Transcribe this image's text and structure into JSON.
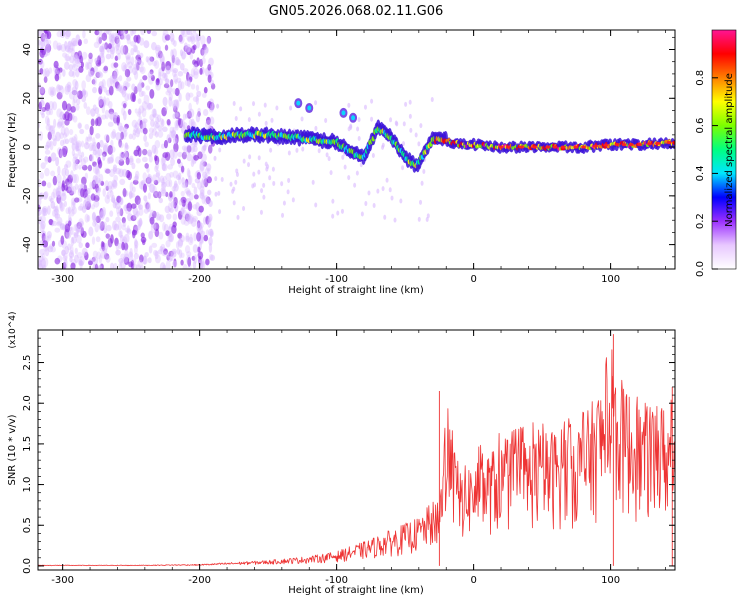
{
  "title": "GN05.2026.068.02.11.G06",
  "chart_data": [
    {
      "type": "heatmap",
      "name": "spectrogram",
      "xlabel": "Height of straight line (km)",
      "ylabel": "Frequency (Hz)",
      "xlim": [
        -318,
        147
      ],
      "ylim": [
        -50,
        48
      ],
      "xticks": [
        -300,
        -200,
        -100,
        0,
        100
      ],
      "xtick_labels": [
        "-300",
        "-200",
        "-100",
        "0",
        "100"
      ],
      "yticks": [
        -40,
        -20,
        0,
        20,
        40
      ],
      "ytick_labels": [
        "-40",
        "-20",
        "0",
        "20",
        "40"
      ],
      "colorbar": {
        "label": "Normalized spectral amplitude",
        "range": [
          0,
          1
        ],
        "ticks": [
          0.0,
          0.2,
          0.4,
          0.6,
          0.8
        ],
        "tick_labels": [
          "0.0",
          "0.2",
          "0.4",
          "0.6",
          "0.8"
        ],
        "colors": [
          "#ffffff",
          "#e8c8ff",
          "#9b30ff",
          "#0000ff",
          "#00e5ff",
          "#00ff80",
          "#7cff00",
          "#ffff00",
          "#ff8000",
          "#ff0000",
          "#ff1493"
        ]
      },
      "ridge_frequency": {
        "x": [
          -205,
          -190,
          -170,
          -150,
          -130,
          -115,
          -100,
          -90,
          -80,
          -70,
          -62,
          -55,
          -48,
          -42,
          -38,
          -30,
          -20,
          -10,
          0,
          20,
          40,
          60,
          80,
          100,
          120,
          147
        ],
        "y": [
          5,
          4,
          5,
          5,
          4,
          3,
          2,
          -2,
          -4,
          8,
          5,
          0,
          -5,
          -8,
          -4,
          3,
          3,
          1,
          1,
          0,
          0,
          0,
          0,
          1,
          1,
          2
        ]
      }
    },
    {
      "type": "line",
      "name": "snr",
      "xlabel": "Height of straight line (km)",
      "ylabel": "SNR (10 * v/v)",
      "y_multiplier": "(x10^4)",
      "xlim": [
        -318,
        147
      ],
      "ylim": [
        -0.05,
        2.9
      ],
      "xticks": [
        -300,
        -200,
        -100,
        0,
        100
      ],
      "xtick_labels": [
        "-300",
        "-200",
        "-100",
        "0",
        "100"
      ],
      "yticks": [
        0.0,
        0.5,
        1.0,
        1.5,
        2.0,
        2.5
      ],
      "ytick_labels": [
        "0.0",
        "0.5",
        "1.0",
        "1.5",
        "2.0",
        "2.5"
      ],
      "color": "#ee3333",
      "envelope": {
        "x": [
          -318,
          -250,
          -200,
          -180,
          -150,
          -120,
          -100,
          -80,
          -60,
          -40,
          -25,
          -20,
          -10,
          0,
          20,
          40,
          60,
          80,
          100,
          120,
          140,
          147
        ],
        "y": [
          0.01,
          0.01,
          0.02,
          0.04,
          0.07,
          0.12,
          0.18,
          0.3,
          0.45,
          0.6,
          0.9,
          1.9,
          1.2,
          1.3,
          1.5,
          1.6,
          1.7,
          1.8,
          2.5,
          2.0,
          2.0,
          1.8
        ]
      },
      "peaks": [
        {
          "x": -25,
          "y": 2.15
        },
        {
          "x": 102,
          "y": 2.85
        },
        {
          "x": 145,
          "y": 2.2
        }
      ]
    }
  ]
}
